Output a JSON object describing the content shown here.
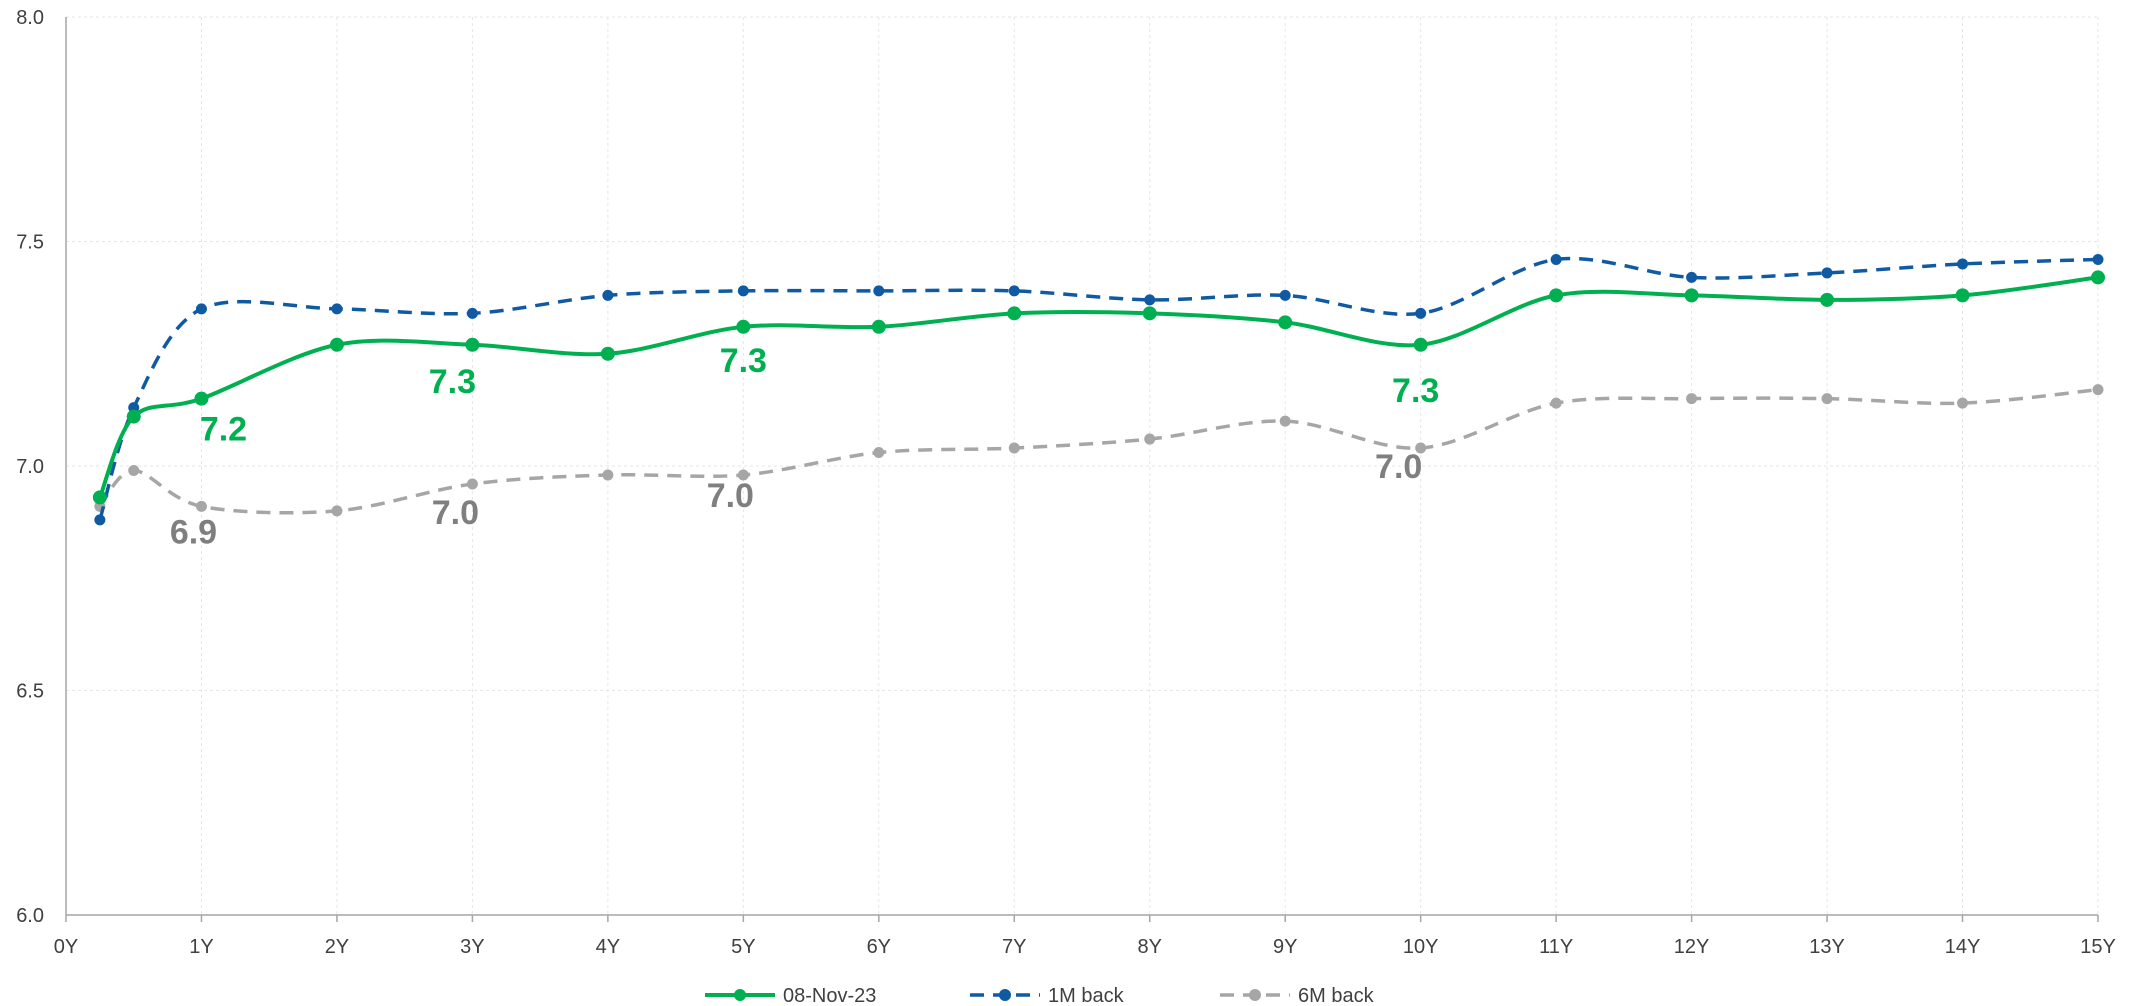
{
  "chart_data": {
    "type": "line",
    "title": "",
    "xlabel": "",
    "ylabel": "",
    "xlim": [
      0,
      15
    ],
    "ylim": [
      6.0,
      8.0
    ],
    "x_ticks": [
      "0Y",
      "1Y",
      "2Y",
      "3Y",
      "4Y",
      "5Y",
      "6Y",
      "7Y",
      "8Y",
      "9Y",
      "10Y",
      "11Y",
      "12Y",
      "13Y",
      "14Y",
      "15Y"
    ],
    "y_ticks": [
      "6.0",
      "6.5",
      "7.0",
      "7.5",
      "8.0"
    ],
    "grid": true,
    "legend_position": "bottom",
    "x": [
      0.25,
      0.5,
      1,
      2,
      3,
      4,
      5,
      6,
      7,
      8,
      9,
      10,
      11,
      12,
      13,
      14,
      15
    ],
    "series": [
      {
        "name": "08-Nov-23",
        "color": "#00b050",
        "style": "solid",
        "values": [
          6.93,
          7.11,
          7.15,
          7.27,
          7.27,
          7.25,
          7.31,
          7.31,
          7.34,
          7.34,
          7.32,
          7.27,
          7.38,
          7.38,
          7.37,
          7.38,
          7.42
        ],
        "labels": [
          {
            "x_index": 2,
            "text": "7.2"
          },
          {
            "x_index": 4,
            "text": "7.3"
          },
          {
            "x_index": 6,
            "text": "7.3"
          },
          {
            "x_index": 11,
            "text": "7.3"
          }
        ]
      },
      {
        "name": "1M back",
        "color": "#0f5aa3",
        "style": "dashed",
        "values": [
          6.88,
          7.13,
          7.35,
          7.35,
          7.34,
          7.38,
          7.39,
          7.39,
          7.39,
          7.37,
          7.38,
          7.34,
          7.46,
          7.42,
          7.43,
          7.45,
          7.46
        ],
        "labels": []
      },
      {
        "name": "6M back",
        "color": "#a6a6a6",
        "label_color": "#7f7f7f",
        "style": "dashed",
        "values": [
          6.91,
          6.99,
          6.91,
          6.9,
          6.96,
          6.98,
          6.98,
          7.03,
          7.04,
          7.06,
          7.1,
          7.04,
          7.14,
          7.15,
          7.15,
          7.14,
          7.17
        ],
        "labels": [
          {
            "x_index": 2,
            "text": "6.9"
          },
          {
            "x_index": 4,
            "text": "7.0"
          },
          {
            "x_index": 6,
            "text": "7.0"
          },
          {
            "x_index": 11,
            "text": "7.0"
          }
        ]
      }
    ]
  }
}
